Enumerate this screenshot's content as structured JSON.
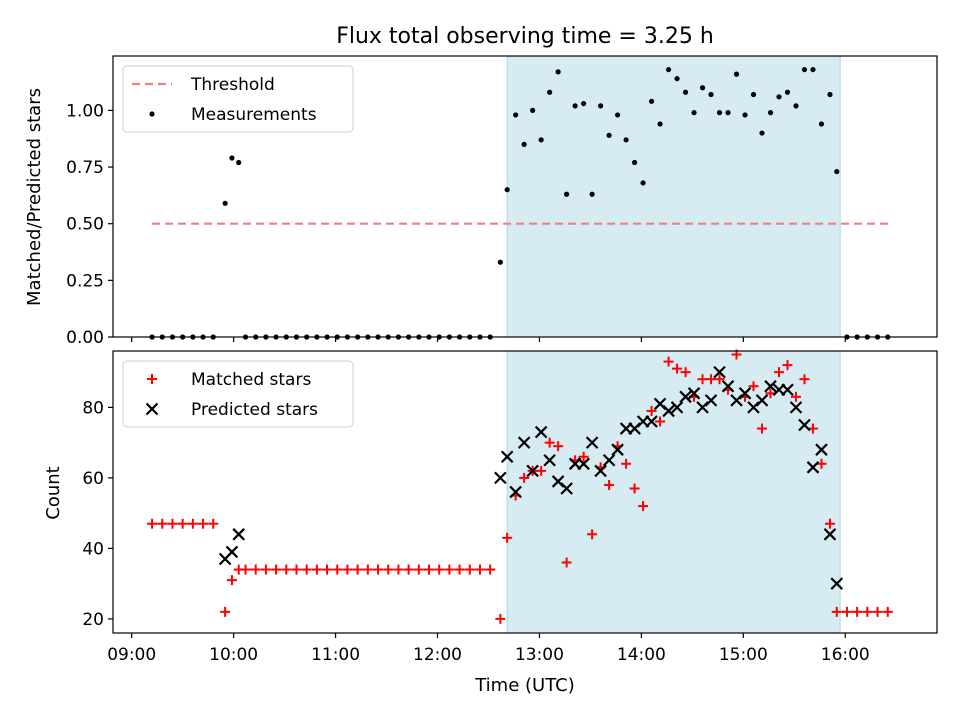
{
  "chart_data": [
    {
      "type": "scatter",
      "title": "Flux total observing time = 3.25 h",
      "xlabel": "",
      "ylabel": "Matched/Predicted stars",
      "ylim": [
        0,
        1.24
      ],
      "yticks": [
        0,
        0.25,
        0.5,
        0.75,
        1.0
      ],
      "ytick_labels": [
        "0.00",
        "0.25",
        "0.50",
        "0.75",
        "1.00"
      ],
      "legend_position": "top-left",
      "shaded_interval": [
        "12:41",
        "15:57"
      ],
      "shade_color": "#add8e6",
      "threshold": {
        "name": "Threshold",
        "value": 0.5,
        "x_range": [
          "09:12",
          "16:27"
        ],
        "color": "#f08080"
      },
      "series": [
        {
          "name": "Measurements",
          "marker": "dot",
          "color": "#000000",
          "points": [
            [
              "09:12",
              0
            ],
            [
              "09:18",
              0
            ],
            [
              "09:24",
              0
            ],
            [
              "09:30",
              0
            ],
            [
              "09:36",
              0
            ],
            [
              "09:42",
              0
            ],
            [
              "09:48",
              0
            ],
            [
              "09:55",
              0.59
            ],
            [
              "09:59",
              0.79
            ],
            [
              "10:03",
              0.77
            ],
            [
              "10:07",
              0
            ],
            [
              "10:13",
              0
            ],
            [
              "10:19",
              0
            ],
            [
              "10:25",
              0
            ],
            [
              "10:31",
              0
            ],
            [
              "10:37",
              0
            ],
            [
              "10:43",
              0
            ],
            [
              "10:49",
              0
            ],
            [
              "10:55",
              0
            ],
            [
              "11:01",
              0
            ],
            [
              "11:07",
              0
            ],
            [
              "11:13",
              0
            ],
            [
              "11:19",
              0
            ],
            [
              "11:25",
              0
            ],
            [
              "11:31",
              0
            ],
            [
              "11:37",
              0
            ],
            [
              "11:43",
              0
            ],
            [
              "11:49",
              0
            ],
            [
              "11:55",
              0
            ],
            [
              "12:01",
              0
            ],
            [
              "12:07",
              0
            ],
            [
              "12:13",
              0
            ],
            [
              "12:19",
              0
            ],
            [
              "12:25",
              0
            ],
            [
              "12:31",
              0
            ],
            [
              "12:37",
              0.33
            ],
            [
              "12:41",
              0.65
            ],
            [
              "12:46",
              0.98
            ],
            [
              "12:51",
              0.85
            ],
            [
              "12:56",
              1.0
            ],
            [
              "13:01",
              0.87
            ],
            [
              "13:06",
              1.08
            ],
            [
              "13:11",
              1.17
            ],
            [
              "13:16",
              0.63
            ],
            [
              "13:21",
              1.02
            ],
            [
              "13:26",
              1.03
            ],
            [
              "13:31",
              0.63
            ],
            [
              "13:36",
              1.02
            ],
            [
              "13:41",
              0.89
            ],
            [
              "13:46",
              0.98
            ],
            [
              "13:51",
              0.87
            ],
            [
              "13:56",
              0.77
            ],
            [
              "14:01",
              0.68
            ],
            [
              "14:06",
              1.04
            ],
            [
              "14:11",
              0.94
            ],
            [
              "14:16",
              1.18
            ],
            [
              "14:21",
              1.14
            ],
            [
              "14:26",
              1.08
            ],
            [
              "14:31",
              0.99
            ],
            [
              "14:36",
              1.1
            ],
            [
              "14:41",
              1.07
            ],
            [
              "14:46",
              0.99
            ],
            [
              "14:51",
              0.99
            ],
            [
              "14:56",
              1.16
            ],
            [
              "15:01",
              0.98
            ],
            [
              "15:06",
              1.07
            ],
            [
              "15:11",
              0.9
            ],
            [
              "15:16",
              0.99
            ],
            [
              "15:21",
              1.06
            ],
            [
              "15:26",
              1.08
            ],
            [
              "15:31",
              1.02
            ],
            [
              "15:36",
              1.18
            ],
            [
              "15:41",
              1.18
            ],
            [
              "15:46",
              0.94
            ],
            [
              "15:51",
              1.07
            ],
            [
              "15:55",
              0.73
            ],
            [
              "16:01",
              0
            ],
            [
              "16:07",
              0
            ],
            [
              "16:13",
              0
            ],
            [
              "16:19",
              0
            ],
            [
              "16:25",
              0
            ]
          ]
        }
      ]
    },
    {
      "type": "scatter",
      "title": "",
      "xlabel": "Time (UTC)",
      "ylabel": "Count",
      "ylim": [
        16,
        96
      ],
      "yticks": [
        20,
        40,
        60,
        80
      ],
      "ytick_labels": [
        "20",
        "40",
        "60",
        "80"
      ],
      "xlim": [
        "08:49",
        "16:54"
      ],
      "xticks": [
        "09:00",
        "10:00",
        "11:00",
        "12:00",
        "13:00",
        "14:00",
        "15:00",
        "16:00"
      ],
      "legend_position": "top-left",
      "shaded_interval": [
        "12:41",
        "15:57"
      ],
      "shade_color": "#add8e6",
      "series": [
        {
          "name": "Matched stars",
          "marker": "plus",
          "color": "#ff0000",
          "points": [
            [
              "09:12",
              47
            ],
            [
              "09:18",
              47
            ],
            [
              "09:24",
              47
            ],
            [
              "09:30",
              47
            ],
            [
              "09:36",
              47
            ],
            [
              "09:42",
              47
            ],
            [
              "09:48",
              47
            ],
            [
              "09:55",
              22
            ],
            [
              "09:59",
              31
            ],
            [
              "10:03",
              34
            ],
            [
              "10:07",
              34
            ],
            [
              "10:13",
              34
            ],
            [
              "10:19",
              34
            ],
            [
              "10:25",
              34
            ],
            [
              "10:31",
              34
            ],
            [
              "10:37",
              34
            ],
            [
              "10:43",
              34
            ],
            [
              "10:49",
              34
            ],
            [
              "10:55",
              34
            ],
            [
              "11:01",
              34
            ],
            [
              "11:07",
              34
            ],
            [
              "11:13",
              34
            ],
            [
              "11:19",
              34
            ],
            [
              "11:25",
              34
            ],
            [
              "11:31",
              34
            ],
            [
              "11:37",
              34
            ],
            [
              "11:43",
              34
            ],
            [
              "11:49",
              34
            ],
            [
              "11:55",
              34
            ],
            [
              "12:01",
              34
            ],
            [
              "12:07",
              34
            ],
            [
              "12:13",
              34
            ],
            [
              "12:19",
              34
            ],
            [
              "12:25",
              34
            ],
            [
              "12:31",
              34
            ],
            [
              "12:37",
              20
            ],
            [
              "12:41",
              43
            ],
            [
              "12:46",
              55
            ],
            [
              "12:51",
              60
            ],
            [
              "12:56",
              62
            ],
            [
              "13:01",
              62
            ],
            [
              "13:06",
              70
            ],
            [
              "13:11",
              69
            ],
            [
              "13:16",
              36
            ],
            [
              "13:21",
              65
            ],
            [
              "13:26",
              66
            ],
            [
              "13:31",
              44
            ],
            [
              "13:36",
              63
            ],
            [
              "13:41",
              58
            ],
            [
              "13:46",
              69
            ],
            [
              "13:51",
              64
            ],
            [
              "13:56",
              57
            ],
            [
              "14:01",
              52
            ],
            [
              "14:06",
              79
            ],
            [
              "14:11",
              76
            ],
            [
              "14:16",
              93
            ],
            [
              "14:21",
              91
            ],
            [
              "14:26",
              90
            ],
            [
              "14:31",
              83
            ],
            [
              "14:36",
              88
            ],
            [
              "14:41",
              88
            ],
            [
              "14:46",
              88
            ],
            [
              "14:51",
              85
            ],
            [
              "14:56",
              95
            ],
            [
              "15:01",
              83
            ],
            [
              "15:06",
              86
            ],
            [
              "15:11",
              74
            ],
            [
              "15:16",
              84
            ],
            [
              "15:21",
              90
            ],
            [
              "15:26",
              92
            ],
            [
              "15:31",
              83
            ],
            [
              "15:36",
              88
            ],
            [
              "15:41",
              74
            ],
            [
              "15:46",
              64
            ],
            [
              "15:51",
              47
            ],
            [
              "15:55",
              22
            ],
            [
              "16:01",
              22
            ],
            [
              "16:07",
              22
            ],
            [
              "16:13",
              22
            ],
            [
              "16:19",
              22
            ],
            [
              "16:25",
              22
            ]
          ]
        },
        {
          "name": "Predicted stars",
          "marker": "x",
          "color": "#000000",
          "points": [
            [
              "09:55",
              37
            ],
            [
              "09:59",
              39
            ],
            [
              "10:03",
              44
            ],
            [
              "12:37",
              60
            ],
            [
              "12:41",
              66
            ],
            [
              "12:46",
              56
            ],
            [
              "12:51",
              70
            ],
            [
              "12:56",
              62
            ],
            [
              "13:01",
              73
            ],
            [
              "13:06",
              65
            ],
            [
              "13:11",
              59
            ],
            [
              "13:16",
              57
            ],
            [
              "13:21",
              64
            ],
            [
              "13:26",
              64
            ],
            [
              "13:31",
              70
            ],
            [
              "13:36",
              62
            ],
            [
              "13:41",
              65
            ],
            [
              "13:46",
              68
            ],
            [
              "13:51",
              74
            ],
            [
              "13:56",
              74
            ],
            [
              "14:01",
              76
            ],
            [
              "14:06",
              76
            ],
            [
              "14:11",
              81
            ],
            [
              "14:16",
              79
            ],
            [
              "14:21",
              80
            ],
            [
              "14:26",
              83
            ],
            [
              "14:31",
              84
            ],
            [
              "14:36",
              80
            ],
            [
              "14:41",
              82
            ],
            [
              "14:46",
              90
            ],
            [
              "14:51",
              86
            ],
            [
              "14:56",
              82
            ],
            [
              "15:01",
              84
            ],
            [
              "15:06",
              80
            ],
            [
              "15:11",
              82
            ],
            [
              "15:16",
              86
            ],
            [
              "15:21",
              85
            ],
            [
              "15:26",
              85
            ],
            [
              "15:31",
              80
            ],
            [
              "15:36",
              75
            ],
            [
              "15:41",
              63
            ],
            [
              "15:46",
              68
            ],
            [
              "15:51",
              44
            ],
            [
              "15:55",
              30
            ]
          ]
        }
      ]
    }
  ]
}
